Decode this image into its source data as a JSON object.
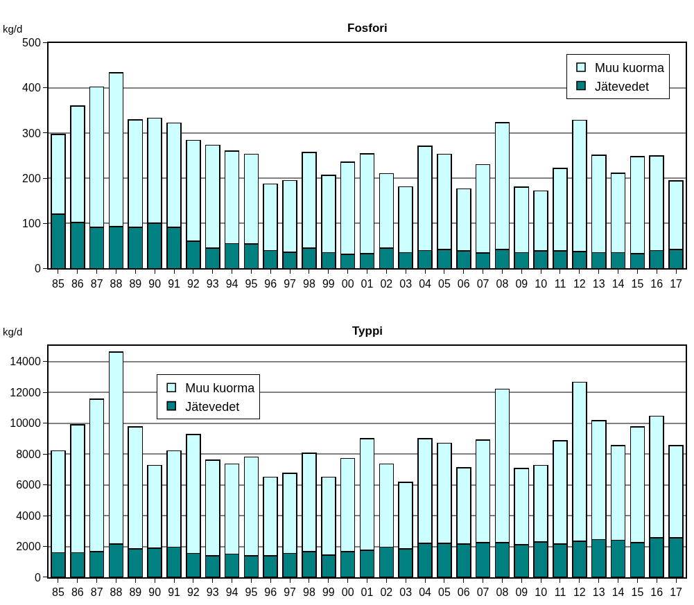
{
  "chart_data": [
    {
      "type": "bar",
      "title": "Fosfori",
      "ylabel": "kg/d",
      "stacked": true,
      "grid": "y",
      "legend": "top right",
      "categories": [
        "85",
        "86",
        "87",
        "88",
        "89",
        "90",
        "91",
        "92",
        "93",
        "94",
        "95",
        "96",
        "97",
        "98",
        "99",
        "00",
        "01",
        "02",
        "03",
        "04",
        "05",
        "06",
        "07",
        "08",
        "09",
        "10",
        "11",
        "12",
        "13",
        "14",
        "15",
        "16",
        "17"
      ],
      "ylim": [
        0,
        500
      ],
      "yticks": [
        0,
        100,
        200,
        300,
        400,
        500
      ],
      "series": [
        {
          "name": "Jätevedet",
          "color": "#008080",
          "values": [
            120,
            102,
            91,
            93,
            91,
            100,
            91,
            60,
            45,
            55,
            54,
            40,
            36,
            45,
            35,
            31,
            33,
            45,
            35,
            40,
            42,
            39,
            34,
            42,
            35,
            39,
            39,
            37,
            35,
            35,
            33,
            40,
            42
          ]
        },
        {
          "name": "Muu kuorma",
          "color": "#ccffff",
          "values": [
            177,
            258,
            311,
            340,
            238,
            233,
            231,
            224,
            228,
            205,
            199,
            147,
            159,
            212,
            171,
            204,
            221,
            165,
            146,
            231,
            211,
            137,
            196,
            281,
            145,
            133,
            183,
            291,
            216,
            176,
            215,
            209,
            152
          ]
        }
      ]
    },
    {
      "type": "bar",
      "title": "Typpi",
      "ylabel": "kg/d",
      "stacked": true,
      "grid": "y",
      "legend": "top left",
      "categories": [
        "85",
        "86",
        "87",
        "88",
        "89",
        "90",
        "91",
        "92",
        "93",
        "94",
        "95",
        "96",
        "97",
        "98",
        "99",
        "00",
        "01",
        "02",
        "03",
        "04",
        "05",
        "06",
        "07",
        "08",
        "09",
        "10",
        "11",
        "12",
        "13",
        "14",
        "15",
        "16",
        "17"
      ],
      "ylim": [
        0,
        15000
      ],
      "yticks": [
        0,
        2000,
        4000,
        6000,
        8000,
        10000,
        12000,
        14000
      ],
      "series": [
        {
          "name": "Jätevedet",
          "color": "#008080",
          "values": [
            1600,
            1600,
            1650,
            2150,
            1850,
            1900,
            1950,
            1550,
            1400,
            1500,
            1400,
            1400,
            1550,
            1650,
            1450,
            1650,
            1750,
            1950,
            1850,
            2200,
            2200,
            2150,
            2250,
            2250,
            2100,
            2300,
            2150,
            2350,
            2450,
            2400,
            2250,
            2550,
            2550
          ]
        },
        {
          "name": "Muu kuorma",
          "color": "#ccffff",
          "values": [
            6600,
            8300,
            9900,
            12450,
            7900,
            5350,
            6250,
            7700,
            6200,
            5850,
            6400,
            5100,
            5200,
            6400,
            5050,
            6050,
            7250,
            5400,
            4300,
            6800,
            6500,
            4950,
            6650,
            9950,
            4950,
            4950,
            6700,
            10300,
            7700,
            6150,
            7500,
            7900,
            6000
          ]
        }
      ]
    }
  ]
}
